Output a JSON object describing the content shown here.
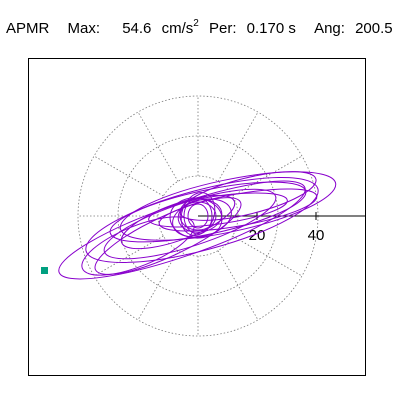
{
  "header": {
    "station": "APMR",
    "max_label": "Max:",
    "max_value": "54.6",
    "max_unit": "cm/s",
    "max_unit_power": "2",
    "per_label": "Per:",
    "per_value": "0.170 s",
    "ang_label": "Ang:",
    "ang_value": "200.5"
  },
  "plot": {
    "axis_tick_labels": [
      "20",
      "40"
    ],
    "axis_ticks": [
      20,
      40
    ],
    "trace_color": "#8800cc",
    "marker_color": "#00a080",
    "grid_color": "#777777"
  }
}
